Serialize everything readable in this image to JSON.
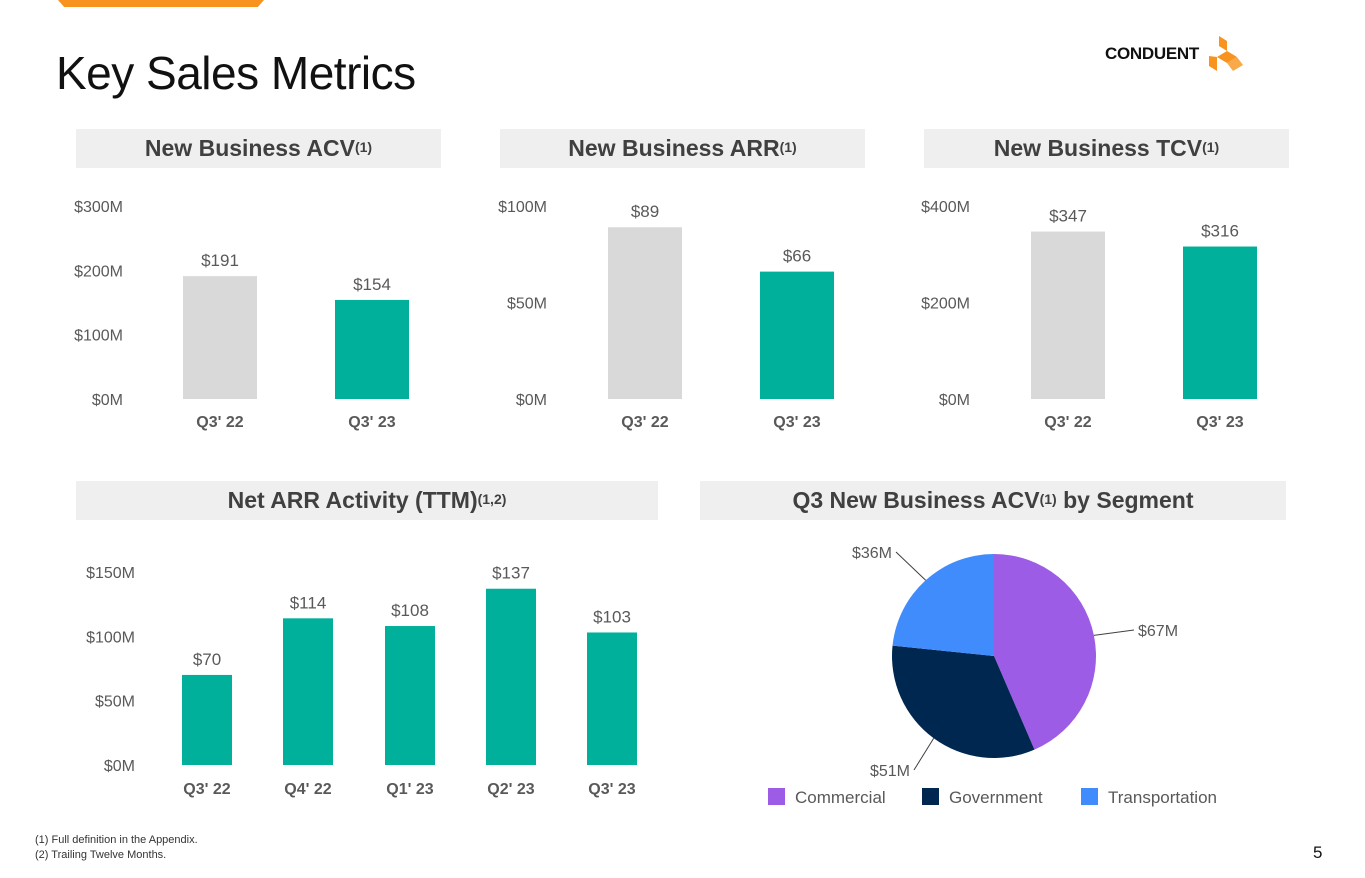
{
  "slide": {
    "title": "Key Sales Metrics",
    "logo_text": "CONDUENT",
    "page_number": "5",
    "footnotes": [
      "(1) Full definition in the Appendix.",
      "(2) Trailing Twelve Months."
    ]
  },
  "headers": {
    "acv": {
      "label": "New Business ACV",
      "sup": "(1)"
    },
    "arr": {
      "label": "New Business ARR",
      "sup": "(1)"
    },
    "tcv": {
      "label": "New Business TCV",
      "sup": "(1)"
    },
    "net_arr": {
      "label": "Net ARR Activity (TTM)",
      "sup": "(1,2)"
    },
    "segment": {
      "label_pre": "Q3 New Business ACV",
      "sup": "(1)",
      "label_post": " by Segment"
    }
  },
  "colors": {
    "prior": "#d9d9d9",
    "current": "#00b09b",
    "commercial": "#9c5ce6",
    "government": "#002750",
    "transportation": "#418cfc",
    "accent": "#f7931e"
  },
  "chart_data": [
    {
      "id": "acv",
      "type": "bar",
      "title": "New Business ACV",
      "categories": [
        "Q3' 22",
        "Q3' 23"
      ],
      "values": [
        191,
        154
      ],
      "value_labels": [
        "$191",
        "$154"
      ],
      "ylim": [
        0,
        300
      ],
      "yticks": [
        0,
        100,
        200,
        300
      ],
      "ytick_labels": [
        "$0M",
        "$100M",
        "$200M",
        "$300M"
      ],
      "unit": "$M",
      "grid": false
    },
    {
      "id": "arr",
      "type": "bar",
      "title": "New Business ARR",
      "categories": [
        "Q3' 22",
        "Q3' 23"
      ],
      "values": [
        89,
        66
      ],
      "value_labels": [
        "$89",
        "$66"
      ],
      "ylim": [
        0,
        100
      ],
      "yticks": [
        0,
        50,
        100
      ],
      "ytick_labels": [
        "$0M",
        "$50M",
        "$100M"
      ],
      "unit": "$M",
      "grid": false
    },
    {
      "id": "tcv",
      "type": "bar",
      "title": "New Business TCV",
      "categories": [
        "Q3' 22",
        "Q3' 23"
      ],
      "values": [
        347,
        316
      ],
      "value_labels": [
        "$347",
        "$316"
      ],
      "ylim": [
        0,
        400
      ],
      "yticks": [
        0,
        200,
        400
      ],
      "ytick_labels": [
        "$0M",
        "$200M",
        "$400M"
      ],
      "unit": "$M",
      "grid": false
    },
    {
      "id": "net_arr",
      "type": "bar",
      "title": "Net ARR Activity (TTM)",
      "categories": [
        "Q3' 22",
        "Q4' 22",
        "Q1' 23",
        "Q2' 23",
        "Q3' 23"
      ],
      "values": [
        70,
        114,
        108,
        137,
        103
      ],
      "value_labels": [
        "$70",
        "$114",
        "$108",
        "$137",
        "$103"
      ],
      "ylim": [
        0,
        150
      ],
      "yticks": [
        0,
        50,
        100,
        150
      ],
      "ytick_labels": [
        "$0M",
        "$50M",
        "$100M",
        "$150M"
      ],
      "unit": "$M",
      "grid": false
    },
    {
      "id": "segment",
      "type": "pie",
      "title": "Q3 New Business ACV by Segment",
      "slices": [
        {
          "name": "Commercial",
          "value": 67,
          "label": "$67M"
        },
        {
          "name": "Government",
          "value": 51,
          "label": "$51M"
        },
        {
          "name": "Transportation",
          "value": 36,
          "label": "$36M"
        }
      ],
      "legend": "bottom"
    }
  ]
}
